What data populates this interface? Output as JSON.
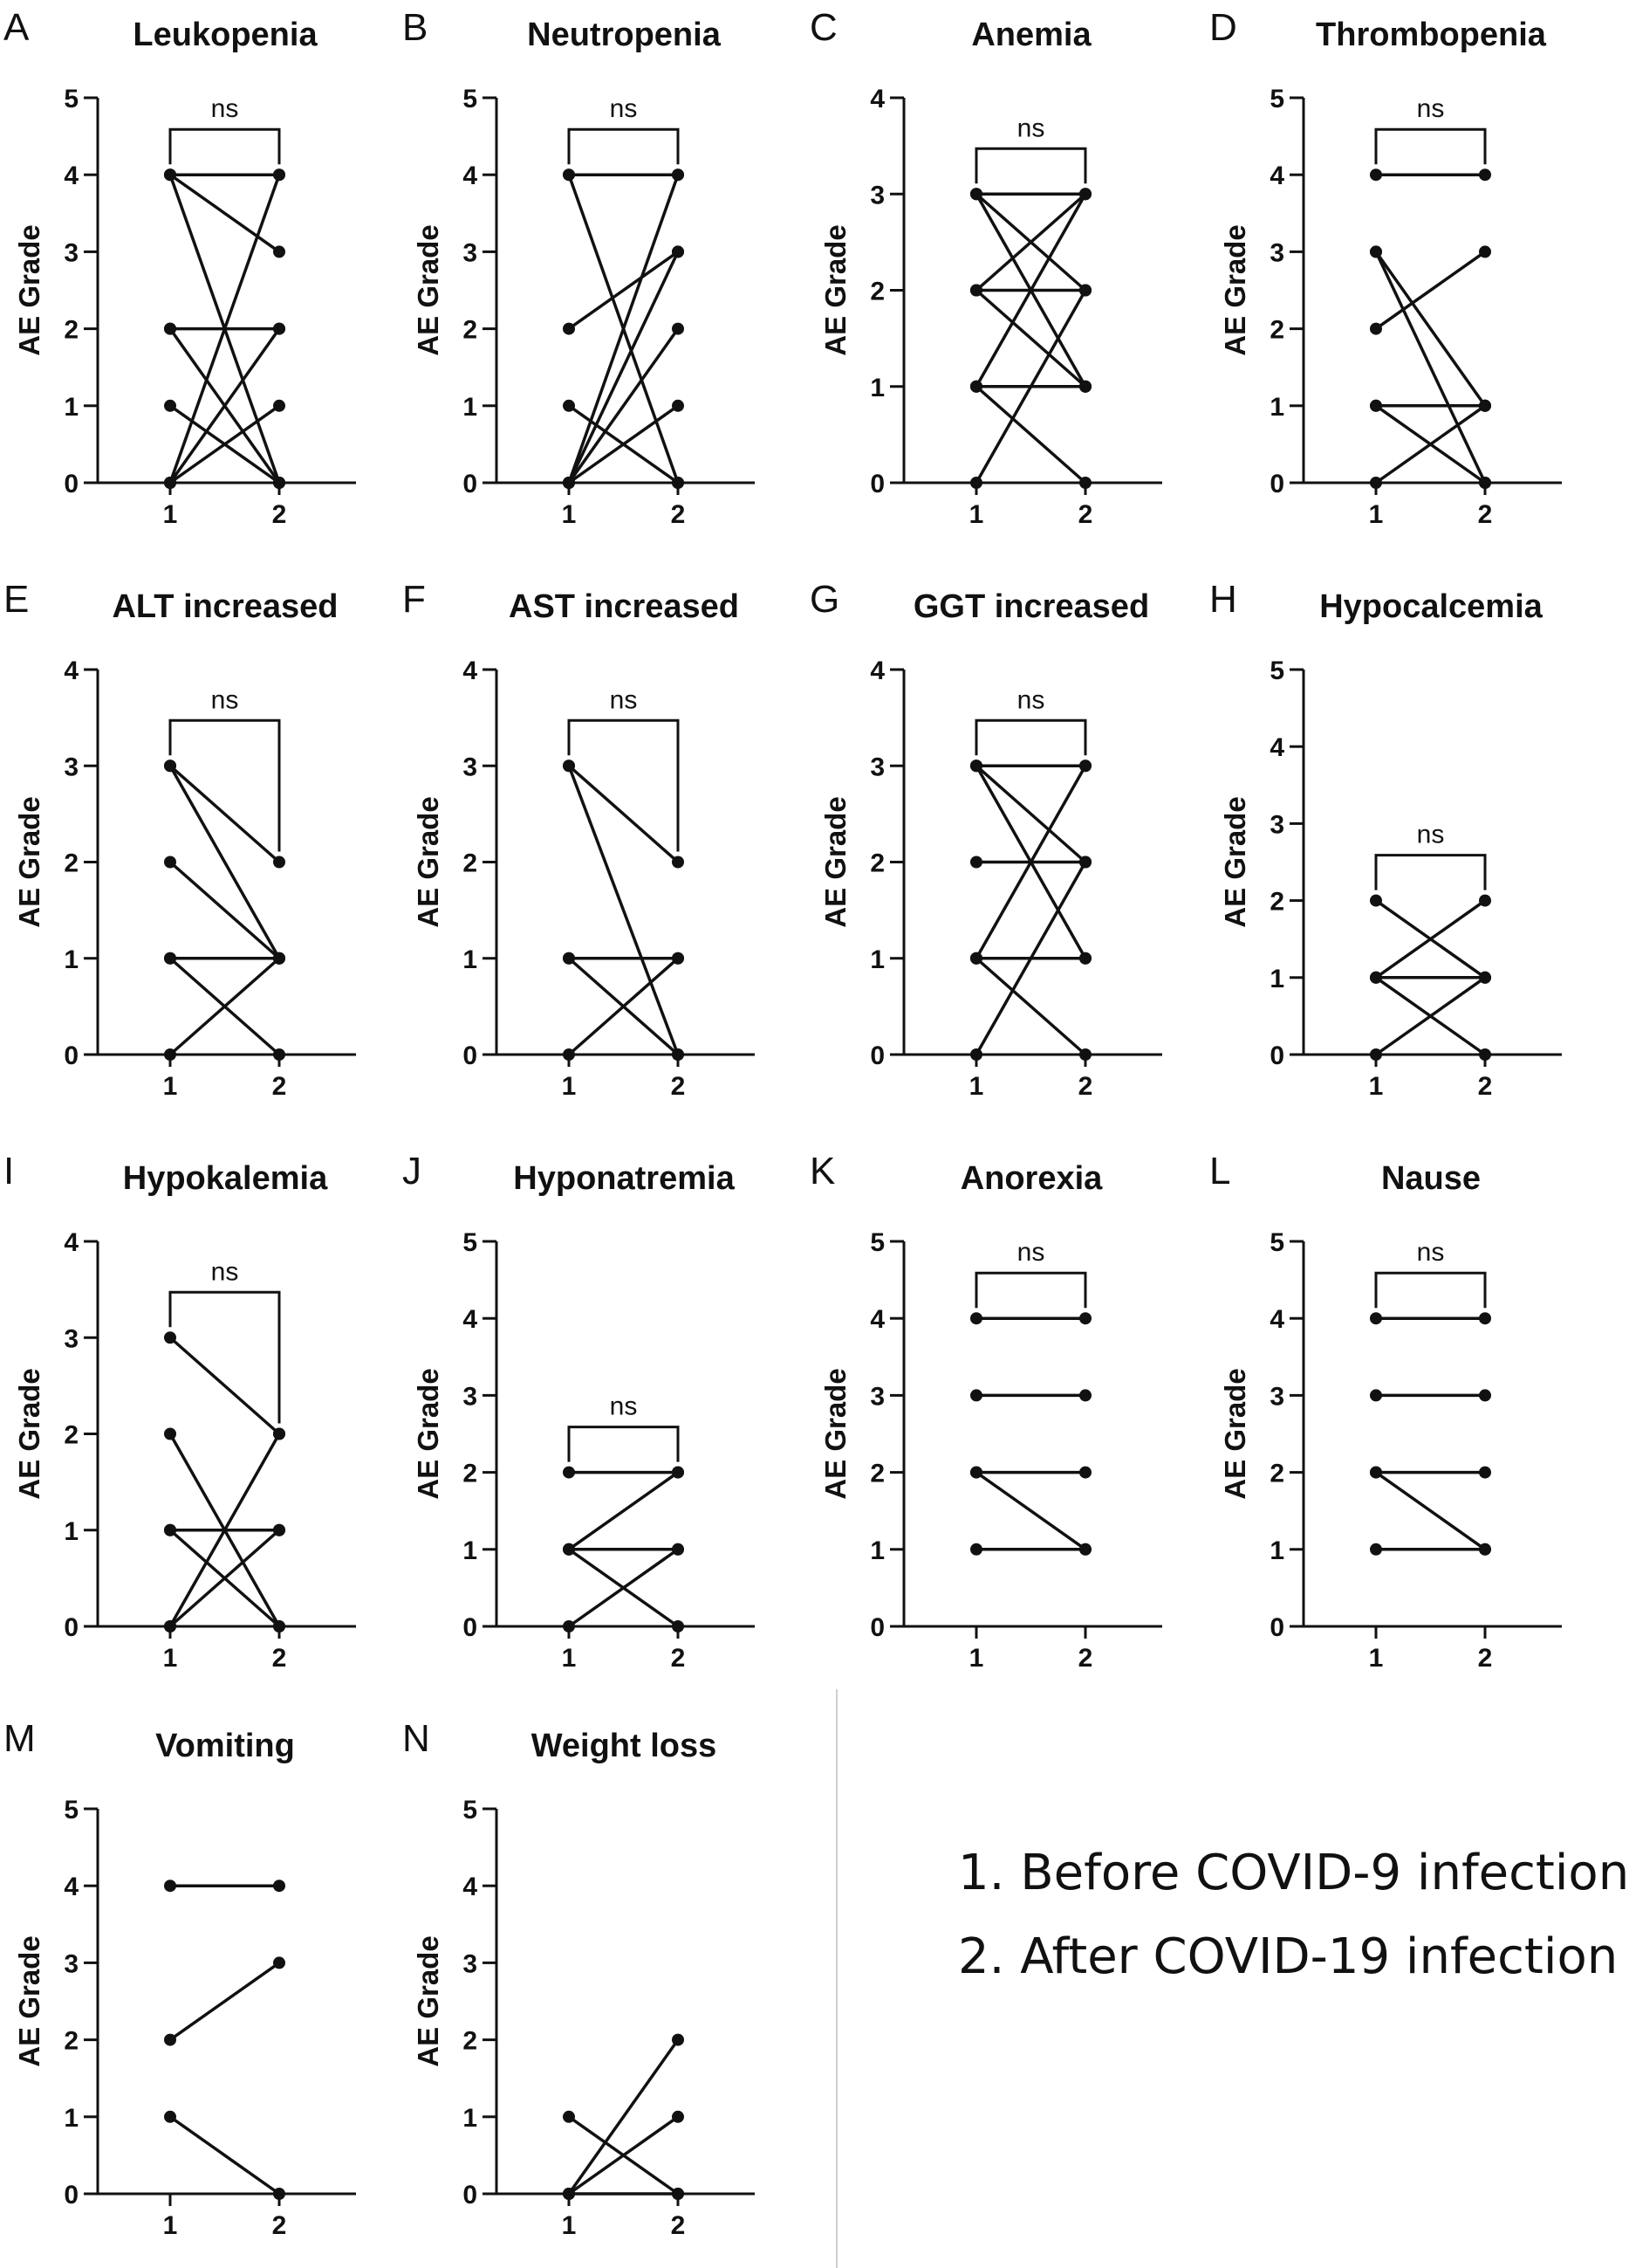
{
  "figure": {
    "y_label": "AE Grade",
    "significance": "ns",
    "legend": [
      "1. Before COVID-9 infection",
      "2. After COVID-19 infection"
    ],
    "colors": {
      "ink": "#111111",
      "divider": "#cfcfcf"
    }
  },
  "chart_data": [
    {
      "letter": "A",
      "title": "Leukopenia",
      "type": "line",
      "xlabel": "",
      "ylabel": "AE Grade",
      "x": [
        "1",
        "2"
      ],
      "ylim": [
        0,
        5
      ],
      "yticks": [
        0,
        1,
        2,
        3,
        4,
        5
      ],
      "significance": "ns",
      "pairs": [
        [
          4,
          4
        ],
        [
          4,
          3
        ],
        [
          4,
          0
        ],
        [
          2,
          2
        ],
        [
          2,
          0
        ],
        [
          1,
          0
        ],
        [
          0,
          2
        ],
        [
          0,
          1
        ],
        [
          0,
          4
        ]
      ]
    },
    {
      "letter": "B",
      "title": "Neutropenia",
      "type": "line",
      "xlabel": "",
      "ylabel": "AE Grade",
      "x": [
        "1",
        "2"
      ],
      "ylim": [
        0,
        5
      ],
      "yticks": [
        0,
        1,
        2,
        3,
        4,
        5
      ],
      "significance": "ns",
      "pairs": [
        [
          4,
          4
        ],
        [
          4,
          0
        ],
        [
          2,
          3
        ],
        [
          1,
          0
        ],
        [
          0,
          4
        ],
        [
          0,
          3
        ],
        [
          0,
          2
        ],
        [
          0,
          1
        ]
      ]
    },
    {
      "letter": "C",
      "title": "Anemia",
      "type": "line",
      "xlabel": "",
      "ylabel": "AE Grade",
      "x": [
        "1",
        "2"
      ],
      "ylim": [
        0,
        4
      ],
      "yticks": [
        0,
        1,
        2,
        3,
        4
      ],
      "significance": "ns",
      "pairs": [
        [
          3,
          3
        ],
        [
          3,
          1
        ],
        [
          2,
          2
        ],
        [
          2,
          3
        ],
        [
          1,
          1
        ],
        [
          1,
          0
        ],
        [
          0,
          2
        ],
        [
          3,
          2
        ],
        [
          2,
          1
        ],
        [
          1,
          3
        ]
      ]
    },
    {
      "letter": "D",
      "title": "Thrombopenia",
      "type": "line",
      "xlabel": "",
      "ylabel": "AE Grade",
      "x": [
        "1",
        "2"
      ],
      "ylim": [
        0,
        5
      ],
      "yticks": [
        0,
        1,
        2,
        3,
        4,
        5
      ],
      "significance": "ns",
      "pairs": [
        [
          4,
          4
        ],
        [
          3,
          0
        ],
        [
          3,
          1
        ],
        [
          2,
          3
        ],
        [
          1,
          1
        ],
        [
          1,
          0
        ],
        [
          0,
          1
        ]
      ]
    },
    {
      "letter": "E",
      "title": "ALT increased",
      "type": "line",
      "xlabel": "",
      "ylabel": "AE Grade",
      "x": [
        "1",
        "2"
      ],
      "ylim": [
        0,
        4
      ],
      "yticks": [
        0,
        1,
        2,
        3,
        4
      ],
      "significance": "ns",
      "pairs": [
        [
          3,
          2
        ],
        [
          3,
          1
        ],
        [
          2,
          1
        ],
        [
          1,
          1
        ],
        [
          1,
          0
        ],
        [
          0,
          1
        ]
      ]
    },
    {
      "letter": "F",
      "title": "AST increased",
      "type": "line",
      "xlabel": "",
      "ylabel": "AE Grade",
      "x": [
        "1",
        "2"
      ],
      "ylim": [
        0,
        4
      ],
      "yticks": [
        0,
        1,
        2,
        3,
        4
      ],
      "significance": "ns",
      "pairs": [
        [
          3,
          2
        ],
        [
          3,
          0
        ],
        [
          1,
          1
        ],
        [
          1,
          0
        ],
        [
          0,
          1
        ]
      ]
    },
    {
      "letter": "G",
      "title": "GGT increased",
      "type": "line",
      "xlabel": "",
      "ylabel": "AE Grade",
      "x": [
        "1",
        "2"
      ],
      "ylim": [
        0,
        4
      ],
      "yticks": [
        0,
        1,
        2,
        3,
        4
      ],
      "significance": "ns",
      "pairs": [
        [
          3,
          3
        ],
        [
          3,
          2
        ],
        [
          3,
          1
        ],
        [
          2,
          2
        ],
        [
          1,
          1
        ],
        [
          1,
          3
        ],
        [
          1,
          0
        ],
        [
          0,
          2
        ]
      ]
    },
    {
      "letter": "H",
      "title": "Hypocalcemia",
      "type": "line",
      "xlabel": "",
      "ylabel": "AE Grade",
      "x": [
        "1",
        "2"
      ],
      "ylim": [
        0,
        5
      ],
      "yticks": [
        0,
        1,
        2,
        3,
        4,
        5
      ],
      "significance": "ns",
      "pairs": [
        [
          2,
          1
        ],
        [
          1,
          1
        ],
        [
          1,
          2
        ],
        [
          1,
          0
        ],
        [
          0,
          1
        ]
      ]
    },
    {
      "letter": "I",
      "title": "Hypokalemia",
      "type": "line",
      "xlabel": "",
      "ylabel": "AE Grade",
      "x": [
        "1",
        "2"
      ],
      "ylim": [
        0,
        4
      ],
      "yticks": [
        0,
        1,
        2,
        3,
        4
      ],
      "significance": "ns",
      "pairs": [
        [
          3,
          2
        ],
        [
          2,
          0
        ],
        [
          1,
          1
        ],
        [
          1,
          0
        ],
        [
          0,
          2
        ],
        [
          0,
          1
        ]
      ]
    },
    {
      "letter": "J",
      "title": "Hyponatremia",
      "type": "line",
      "xlabel": "",
      "ylabel": "AE Grade",
      "x": [
        "1",
        "2"
      ],
      "ylim": [
        0,
        5
      ],
      "yticks": [
        0,
        1,
        2,
        3,
        4,
        5
      ],
      "significance": "ns",
      "pairs": [
        [
          2,
          2
        ],
        [
          1,
          2
        ],
        [
          1,
          1
        ],
        [
          1,
          0
        ],
        [
          0,
          1
        ]
      ]
    },
    {
      "letter": "K",
      "title": "Anorexia",
      "type": "line",
      "xlabel": "",
      "ylabel": "AE Grade",
      "x": [
        "1",
        "2"
      ],
      "ylim": [
        0,
        5
      ],
      "yticks": [
        0,
        1,
        2,
        3,
        4,
        5
      ],
      "significance": "ns",
      "pairs": [
        [
          4,
          4
        ],
        [
          3,
          3
        ],
        [
          2,
          2
        ],
        [
          2,
          1
        ],
        [
          1,
          1
        ]
      ]
    },
    {
      "letter": "L",
      "title": "Nause",
      "type": "line",
      "xlabel": "",
      "ylabel": "AE Grade",
      "x": [
        "1",
        "2"
      ],
      "ylim": [
        0,
        5
      ],
      "yticks": [
        0,
        1,
        2,
        3,
        4,
        5
      ],
      "significance": "ns",
      "pairs": [
        [
          4,
          4
        ],
        [
          3,
          3
        ],
        [
          2,
          2
        ],
        [
          2,
          1
        ],
        [
          1,
          1
        ]
      ]
    },
    {
      "letter": "M",
      "title": "Vomiting",
      "type": "line",
      "xlabel": "",
      "ylabel": "AE Grade",
      "x": [
        "1",
        "2"
      ],
      "ylim": [
        0,
        5
      ],
      "yticks": [
        0,
        1,
        2,
        3,
        4,
        5
      ],
      "significance": "",
      "pairs": [
        [
          4,
          4
        ],
        [
          2,
          3
        ],
        [
          1,
          0
        ]
      ]
    },
    {
      "letter": "N",
      "title": "Weight loss",
      "type": "line",
      "xlabel": "",
      "ylabel": "AE Grade",
      "x": [
        "1",
        "2"
      ],
      "ylim": [
        0,
        5
      ],
      "yticks": [
        0,
        1,
        2,
        3,
        4,
        5
      ],
      "significance": "",
      "pairs": [
        [
          1,
          0
        ],
        [
          0,
          2
        ],
        [
          0,
          1
        ],
        [
          0,
          0
        ]
      ]
    }
  ]
}
